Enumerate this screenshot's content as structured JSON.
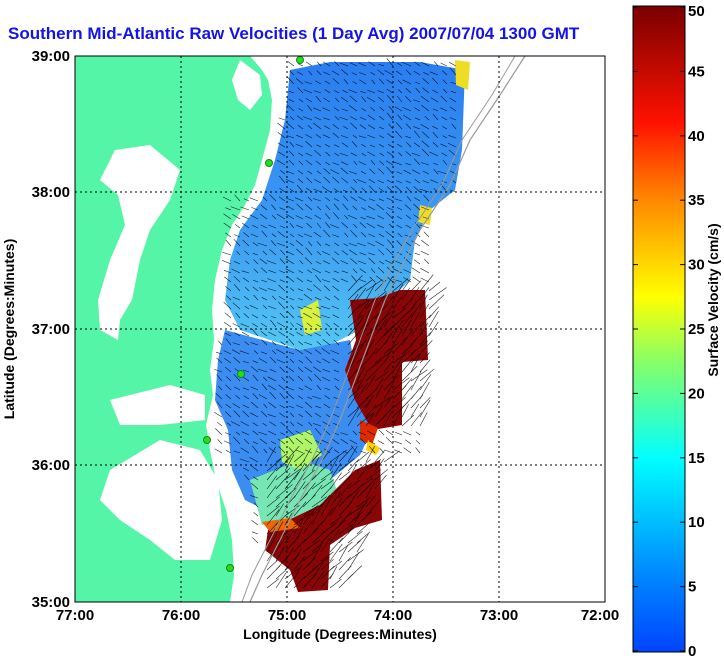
{
  "title": "Southern Mid-Atlantic Raw Velocities (1 Day Avg) 2007/07/04 1300 GMT",
  "x_axis": {
    "label": "Longitude (Degrees:Minutes)",
    "ticks": [
      "77:00",
      "76:00",
      "75:00",
      "74:00",
      "73:00",
      "72:00"
    ]
  },
  "y_axis": {
    "label": "Latitude (Degrees:Minutes)",
    "ticks": [
      "39:00",
      "38:00",
      "37:00",
      "36:00",
      "35:00"
    ]
  },
  "colorbar": {
    "label": "Surface Velocity (cm/s)",
    "ticks": [
      "50",
      "45",
      "40",
      "35",
      "30",
      "25",
      "20",
      "15",
      "10",
      "5",
      "0"
    ],
    "min": 0,
    "max": 50
  },
  "colors": {
    "land": "#55f5a8",
    "title": "#1414e6",
    "station": "#22dd22"
  }
}
